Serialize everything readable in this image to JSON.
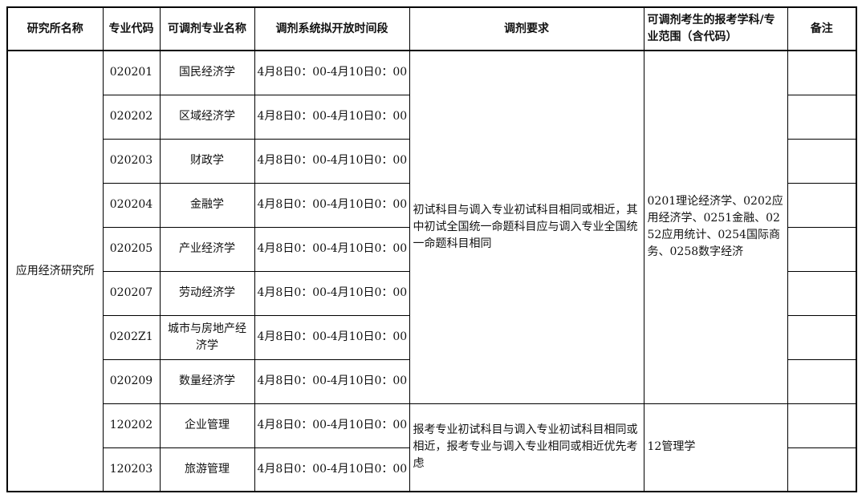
{
  "page": {
    "background_color": "#ffffff",
    "border_color": "#000000",
    "text_color": "#111111"
  },
  "table": {
    "headers": [
      "研究所名称",
      "专业代码",
      "可调剂专业名称",
      "调剂系统拟开放时间段",
      "调剂要求",
      "可调剂考生的报考学科/专业范围（含代码）",
      "备注"
    ],
    "institute": "应用经济研究所",
    "groups": [
      {
        "requirement": "初试科目与调入专业初试科目相同或相近，其中初试全国统一命题科目应与调入专业全国统一命题科目相同",
        "scope": "0201理论经济学、0202应用经济学、0251金融、0252应用统计、0254国际商务、0258数字经济",
        "rows": [
          {
            "code": "020201",
            "major": "国民经济学",
            "time": "4月8日0：00-4月10日0：00",
            "remark": ""
          },
          {
            "code": "020202",
            "major": "区域经济学",
            "time": "4月8日0：00-4月10日0：00",
            "remark": ""
          },
          {
            "code": "020203",
            "major": "财政学",
            "time": "4月8日0：00-4月10日0：00",
            "remark": ""
          },
          {
            "code": "020204",
            "major": "金融学",
            "time": "4月8日0：00-4月10日0：00",
            "remark": ""
          },
          {
            "code": "020205",
            "major": "产业经济学",
            "time": "4月8日0：00-4月10日0：00",
            "remark": ""
          },
          {
            "code": "020207",
            "major": "劳动经济学",
            "time": "4月8日0：00-4月10日0：00",
            "remark": ""
          },
          {
            "code": "0202Z1",
            "major": "城市与房地产经济学",
            "time": "4月8日0：00-4月10日0：00",
            "remark": ""
          },
          {
            "code": "020209",
            "major": "数量经济学",
            "time": "4月8日0：00-4月10日0：00",
            "remark": ""
          }
        ]
      },
      {
        "requirement": "报考专业初试科目与调入专业初试科目相同或相近，报考专业与调入专业相同或相近优先考虑",
        "scope": "12管理学",
        "rows": [
          {
            "code": "120202",
            "major": "企业管理",
            "time": "4月8日0：00-4月10日0：00",
            "remark": ""
          },
          {
            "code": "120203",
            "major": "旅游管理",
            "time": "4月8日0：00-4月10日0：00",
            "remark": ""
          }
        ]
      }
    ]
  }
}
